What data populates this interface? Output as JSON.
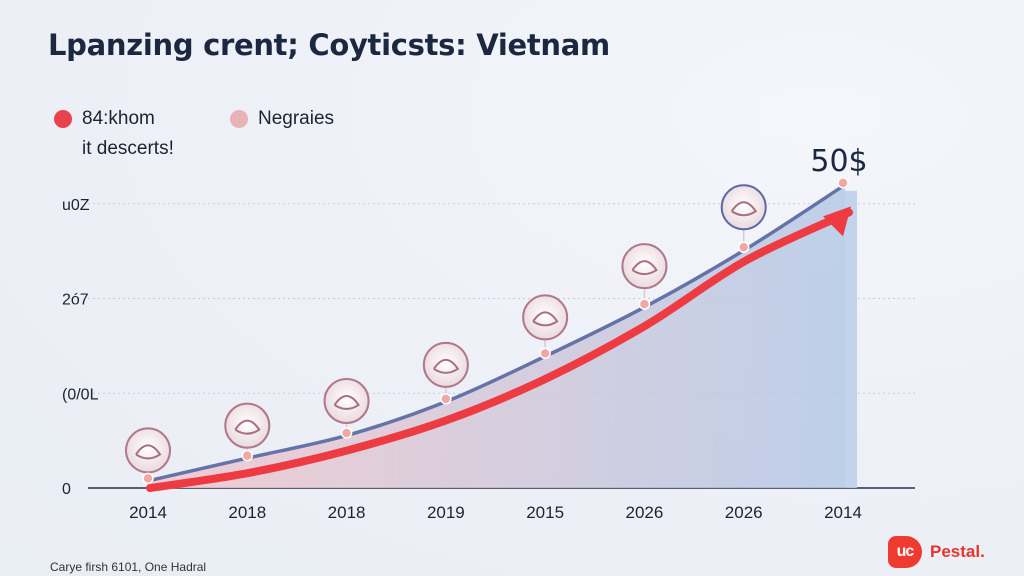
{
  "title": "Lpanzing crent; Coyticsts: Vietnam",
  "legend": {
    "items": [
      {
        "label": "84:khom",
        "sublabel": "it descerts!",
        "color": "#e9424f"
      },
      {
        "label": "Negraies",
        "sublabel": "",
        "color": "#e9b3b6"
      }
    ]
  },
  "peak_label": "50$",
  "source": "Carye firsh 6101, One Hadral",
  "brand": {
    "logo_text": "uc",
    "name": "Pestal."
  },
  "colors": {
    "arrow": "#ee3b42",
    "curve": "#6673a8",
    "marker": "#f2a7a4",
    "area_start": "#f2c7cd",
    "area_end": "#b5c9e6"
  },
  "chart_data": {
    "type": "area",
    "categories": [
      "2014",
      "2018",
      "2018",
      "2019",
      "2015",
      "2026",
      "2026",
      "2014"
    ],
    "series": [
      {
        "values": [
          2,
          8,
          14,
          23,
          35,
          48,
          63,
          80
        ]
      },
      {
        "values": [
          0,
          4,
          10,
          18,
          29,
          43,
          60,
          78
        ]
      }
    ],
    "y_ticks": [
      "0",
      "(0/0L",
      "2ó7",
      "u0Z"
    ],
    "y_tick_values": [
      0,
      25,
      50,
      75
    ],
    "ylim": [
      0,
      95
    ],
    "grid": true,
    "legend_position": "top-left"
  }
}
